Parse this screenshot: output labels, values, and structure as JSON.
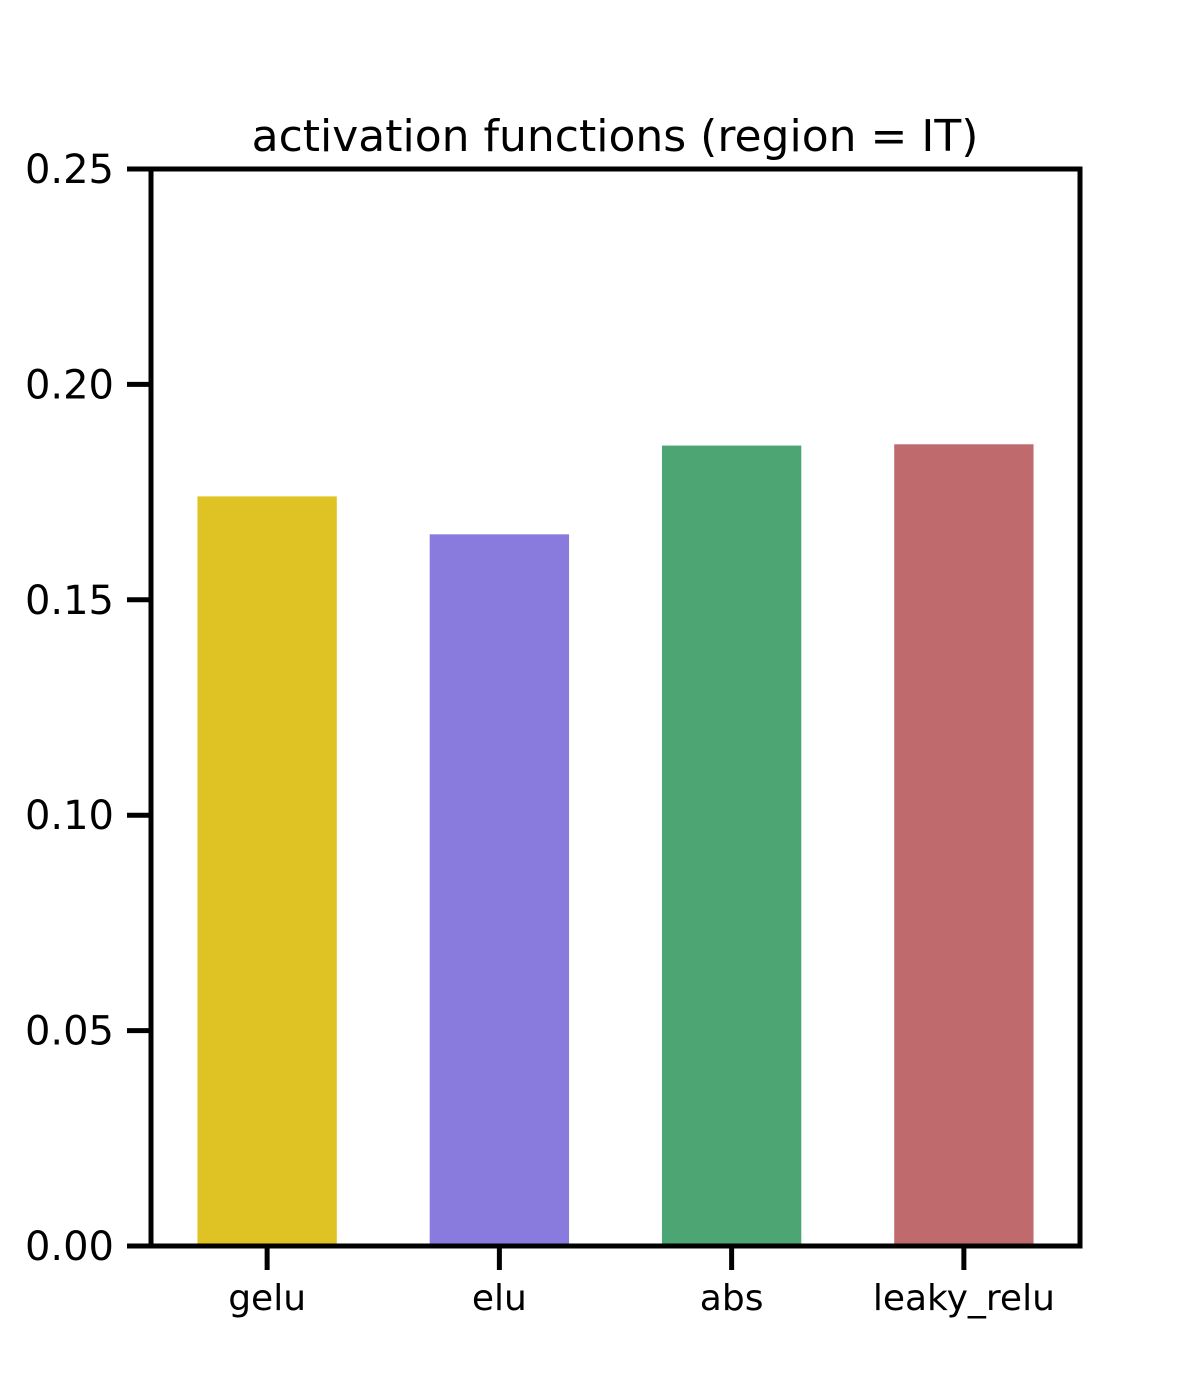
{
  "chart_data": {
    "type": "bar",
    "title": "activation functions (region = IT)",
    "xlabel": "",
    "ylabel": "",
    "categories": [
      "gelu",
      "elu",
      "abs",
      "leaky_relu"
    ],
    "values": [
      0.174,
      0.1652,
      0.1858,
      0.1861
    ],
    "colors": [
      "#dfc223",
      "#897bdd",
      "#4ea574",
      "#bf6b6d"
    ],
    "ylim": [
      0,
      0.25
    ],
    "yticks": [
      "0.00",
      "0.05",
      "0.10",
      "0.15",
      "0.20",
      "0.25"
    ],
    "grid": false,
    "legend": "none"
  }
}
